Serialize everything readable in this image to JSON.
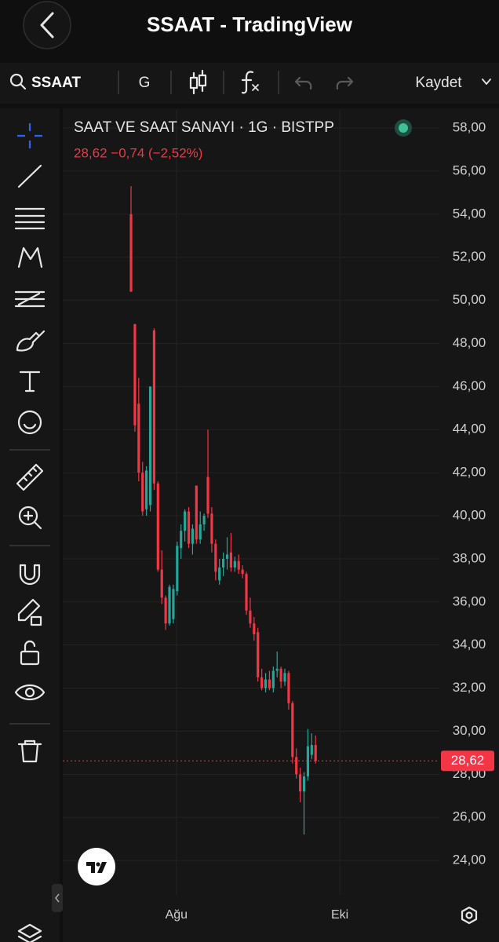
{
  "header": {
    "title": "SSAAT - TradingView"
  },
  "toolbar": {
    "symbol": "SSAAT",
    "interval": "G",
    "save": "Kaydet"
  },
  "chart_data": {
    "type": "candlestick",
    "title": "SAAT VE SAAT SANAYI · 1G · BISTPP",
    "subtitle": "28,62  −0,74 (−2,52%)",
    "x": [
      0,
      1,
      2,
      3,
      4,
      5,
      6,
      7,
      8,
      9,
      10,
      11,
      12,
      13,
      14,
      15,
      16,
      17,
      18,
      19,
      20,
      21,
      22,
      23,
      24,
      25,
      26,
      27,
      28,
      29,
      30,
      31,
      32,
      33,
      34,
      35,
      36,
      37,
      38,
      39,
      40,
      41,
      42,
      43,
      44,
      45,
      46,
      47,
      48
    ],
    "open": [
      54.0,
      48.9,
      45.2,
      42.0,
      40.3,
      40.5,
      48.6,
      41.5,
      37.5,
      36.2,
      35.0,
      35.2,
      36.5,
      38.5,
      39.3,
      40.2,
      38.7,
      41.4,
      38.9,
      39.6,
      41.8,
      40.1,
      38.7,
      37.0,
      37.6,
      38.0,
      38.3,
      37.6,
      37.9,
      37.5,
      37.3,
      35.6,
      35.0,
      34.6,
      32.5,
      32.0,
      32.4,
      32.0,
      32.8,
      32.9,
      32.3,
      32.7,
      31.3,
      28.8,
      28.0,
      27.2,
      27.9,
      28.9,
      29.36
    ],
    "high": [
      55.3,
      48.9,
      46.4,
      42.5,
      42.3,
      46.0,
      48.7,
      41.6,
      38.4,
      36.3,
      36.8,
      36.8,
      38.8,
      39.6,
      40.3,
      40.4,
      39.6,
      41.4,
      40.2,
      40.1,
      44.0,
      40.4,
      38.9,
      38.0,
      38.3,
      39.0,
      39.2,
      38.1,
      38.2,
      37.7,
      37.4,
      36.2,
      35.3,
      34.8,
      32.9,
      32.7,
      32.8,
      33.0,
      33.7,
      33.0,
      32.9,
      32.8,
      31.4,
      29.2,
      28.3,
      28.1,
      30.1,
      29.9,
      29.8
    ],
    "low": [
      50.4,
      43.9,
      41.6,
      40.0,
      40.0,
      40.2,
      41.2,
      37.4,
      35.9,
      34.7,
      34.9,
      35.0,
      36.3,
      38.0,
      38.8,
      38.5,
      38.2,
      38.7,
      38.7,
      39.3,
      39.9,
      38.3,
      37.0,
      36.8,
      37.2,
      37.5,
      37.4,
      37.4,
      37.3,
      37.1,
      35.4,
      34.8,
      34.2,
      32.3,
      31.9,
      31.8,
      31.9,
      31.8,
      32.5,
      32.0,
      32.1,
      31.0,
      28.5,
      27.8,
      26.7,
      25.2,
      27.7,
      28.7,
      28.5
    ],
    "close": [
      50.4,
      44.2,
      42.0,
      40.2,
      42.1,
      46.0,
      41.5,
      37.5,
      36.2,
      35.0,
      36.7,
      36.6,
      38.6,
      39.3,
      40.2,
      38.7,
      39.4,
      38.9,
      39.6,
      40.0,
      40.1,
      38.7,
      37.4,
      37.6,
      38.0,
      38.2,
      37.6,
      37.9,
      37.5,
      37.3,
      35.6,
      35.0,
      34.5,
      32.5,
      32.0,
      32.4,
      32.0,
      32.8,
      32.9,
      32.3,
      32.7,
      31.3,
      28.8,
      28.0,
      27.2,
      27.9,
      29.3,
      29.36,
      28.62
    ],
    "up_color": "#26a69a",
    "down_color": "#f23645",
    "ylim": [
      22.4,
      58.84
    ],
    "yticks": [
      {
        "value": 24,
        "label": "24,00"
      },
      {
        "value": 26,
        "label": "26,00"
      },
      {
        "value": 28,
        "label": "28,00"
      },
      {
        "value": 30,
        "label": "30,00"
      },
      {
        "value": 32,
        "label": "32,00"
      },
      {
        "value": 34,
        "label": "34,00"
      },
      {
        "value": 36,
        "label": "36,00"
      },
      {
        "value": 38,
        "label": "38,00"
      },
      {
        "value": 40,
        "label": "40,00"
      },
      {
        "value": 42,
        "label": "42,00"
      },
      {
        "value": 44,
        "label": "44,00"
      },
      {
        "value": 46,
        "label": "46,00"
      },
      {
        "value": 48,
        "label": "48,00"
      },
      {
        "value": 50,
        "label": "50,00"
      },
      {
        "value": 52,
        "label": "52,00"
      },
      {
        "value": 54,
        "label": "54,00"
      },
      {
        "value": 56,
        "label": "56,00"
      },
      {
        "value": 58,
        "label": "58,00"
      }
    ],
    "xlim": [
      -17.76,
      80.2
    ],
    "xticks": [
      {
        "value": 11.8,
        "label": "Ağu"
      },
      {
        "value": 54.3,
        "label": "Eki"
      }
    ],
    "grid": true,
    "last_price": {
      "value": 28.62,
      "label": "28,62"
    }
  }
}
